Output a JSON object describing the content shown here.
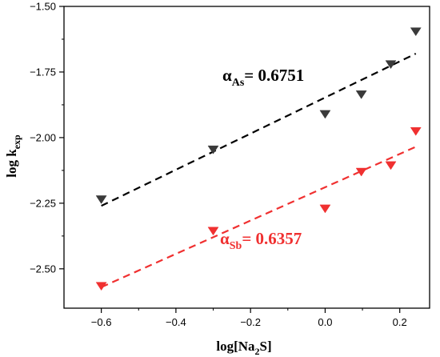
{
  "chart_data": {
    "type": "scatter",
    "xlabel_main": "log[Na",
    "xlabel_sub": "2",
    "xlabel_tail": "S]",
    "ylabel_main": "log k",
    "ylabel_sub": "exp",
    "xlim": [
      -0.7,
      0.28
    ],
    "ylim": [
      -2.65,
      -1.5
    ],
    "xticks": [
      -0.6,
      -0.4,
      -0.2,
      0.0,
      0.2
    ],
    "xtick_labels": [
      "-0.6",
      "-0.4",
      "-0.2",
      "0.0",
      "0.2"
    ],
    "yticks": [
      -2.5,
      -2.25,
      -2.0,
      -1.75,
      -1.5
    ],
    "ytick_labels": [
      "-2.50",
      "-2.25",
      "-2.00",
      "-1.75",
      "-1.50"
    ],
    "grid": false,
    "series": [
      {
        "color": "#3a3a3a",
        "marker": "down-triangle",
        "x": [
          -0.6,
          -0.3,
          0.0,
          0.097,
          0.176,
          0.243
        ],
        "y": [
          -2.235,
          -2.045,
          -1.91,
          -1.835,
          -1.72,
          -1.595
        ],
        "fit": {
          "x": [
            -0.6,
            0.243
          ],
          "y": [
            -2.26,
            -1.68
          ],
          "color": "#000000",
          "dash": true
        },
        "annotation": {
          "main": "α",
          "sub": "As",
          "tail": "= 0.6751",
          "color": "#000000"
        }
      },
      {
        "color": "#f03030",
        "marker": "down-triangle",
        "x": [
          -0.6,
          -0.3,
          0.0,
          0.097,
          0.176,
          0.243
        ],
        "y": [
          -2.565,
          -2.355,
          -2.27,
          -2.13,
          -2.105,
          -1.975
        ],
        "fit": {
          "x": [
            -0.6,
            0.243
          ],
          "y": [
            -2.57,
            -2.035
          ],
          "color": "#f03030",
          "dash": true
        },
        "annotation": {
          "main": "α",
          "sub": "Sb",
          "tail": "= 0.6357",
          "color": "#f03030"
        }
      }
    ]
  }
}
